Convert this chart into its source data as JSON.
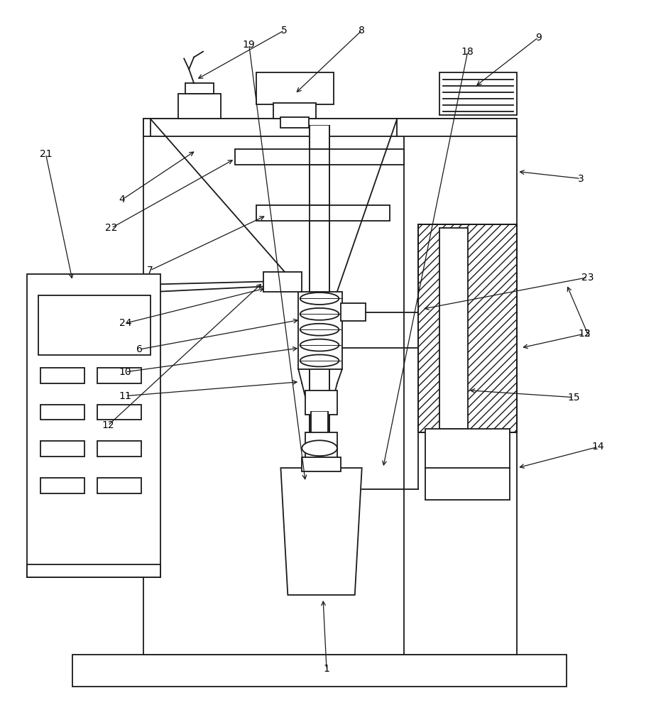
{
  "bg_color": "#ffffff",
  "line_color": "#1a1a1a",
  "lw": 1.3,
  "fig_width": 9.24,
  "fig_height": 10.0
}
